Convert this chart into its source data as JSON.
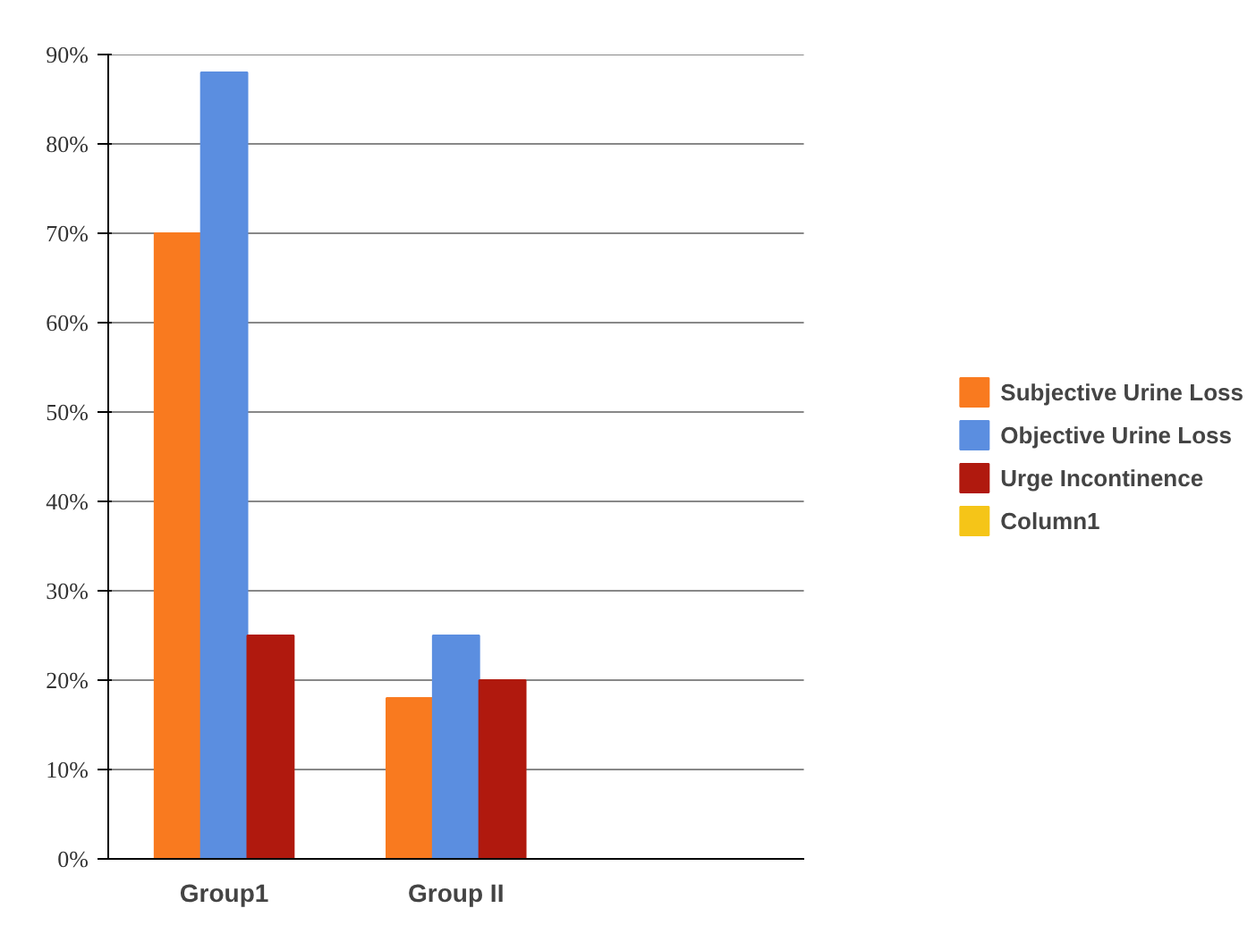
{
  "chart_data": {
    "type": "bar",
    "categories": [
      "Group1",
      "Group II",
      null
    ],
    "series": [
      {
        "name": "Subjective Urine Loss",
        "color": "#f97a1f",
        "values": [
          70,
          18,
          null
        ]
      },
      {
        "name": "Objective Urine Loss",
        "color": "#5b8ee0",
        "values": [
          88,
          25,
          null
        ]
      },
      {
        "name": "Urge Incontinence",
        "color": "#b0190e",
        "values": [
          25,
          20,
          null
        ]
      },
      {
        "name": "Column1",
        "color": "#f5c518",
        "values": [
          null,
          null,
          null
        ]
      }
    ],
    "ylim": [
      0,
      90
    ],
    "yticks": [
      {
        "value": 0,
        "label": "0%"
      },
      {
        "value": 10,
        "label": "10%"
      },
      {
        "value": 20,
        "label": "20%"
      },
      {
        "value": 30,
        "label": "30%"
      },
      {
        "value": 40,
        "label": "40%"
      },
      {
        "value": 50,
        "label": "50%"
      },
      {
        "value": 60,
        "label": "60%"
      },
      {
        "value": 70,
        "label": "70%"
      },
      {
        "value": 80,
        "label": "80%"
      },
      {
        "value": 90,
        "label": "90%"
      }
    ],
    "grid": "y",
    "legend": "right"
  }
}
